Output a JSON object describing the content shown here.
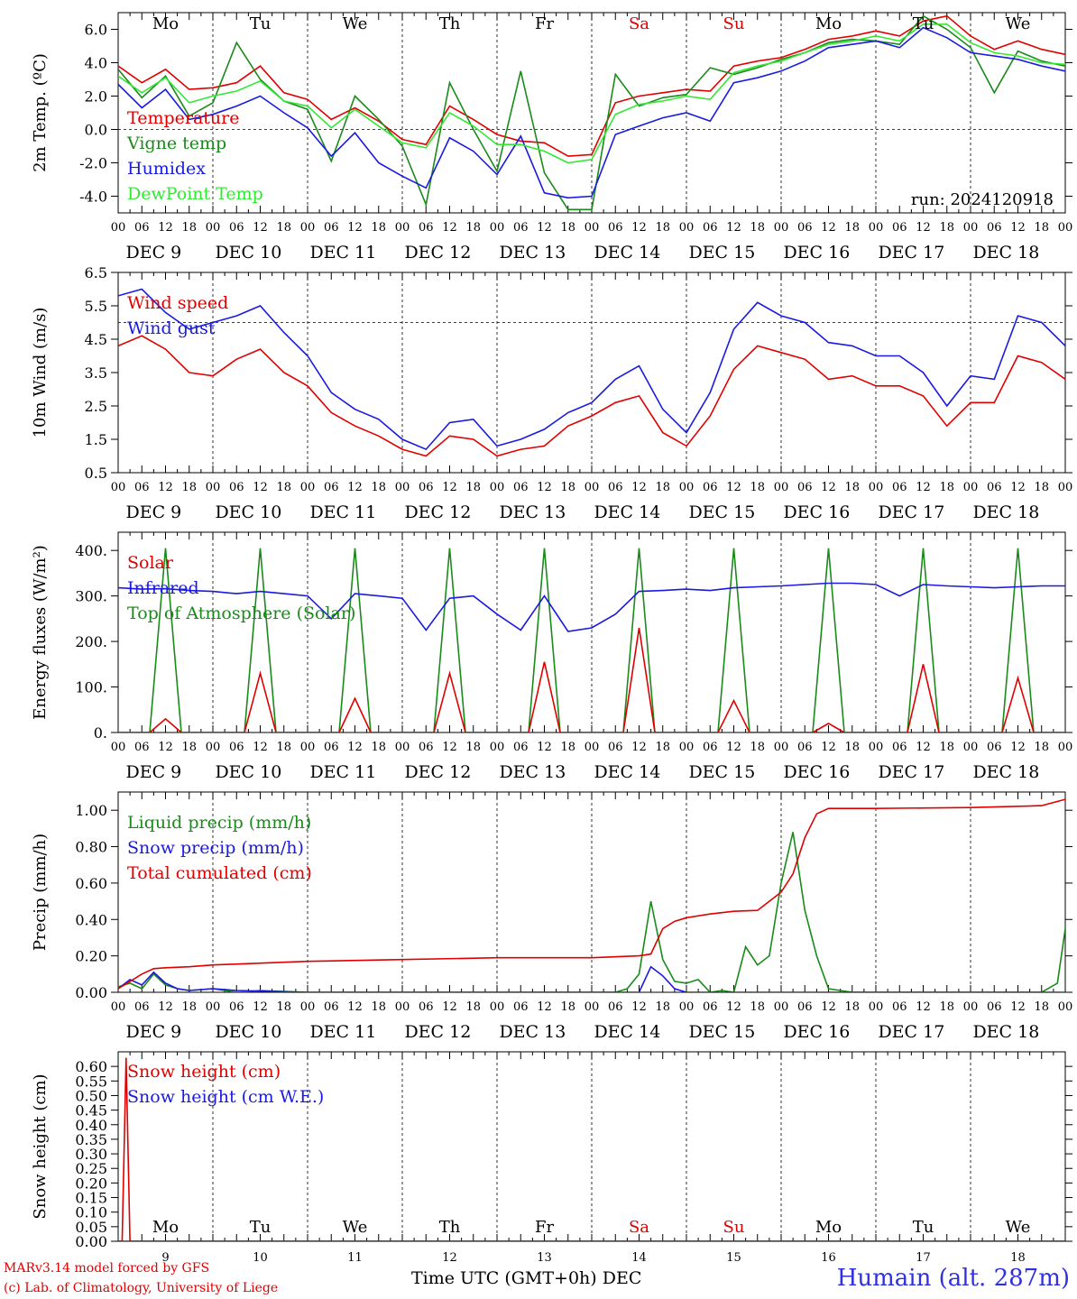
{
  "run_label": "run: 2024120918",
  "days": {
    "names": [
      "Mo",
      "Tu",
      "We",
      "Th",
      "Fr",
      "Sa",
      "Su",
      "Mo",
      "Tu",
      "We"
    ],
    "weekend": [
      false,
      false,
      false,
      false,
      false,
      true,
      true,
      false,
      false,
      false
    ],
    "date_labels": [
      "DEC  9",
      "DEC 10",
      "DEC 11",
      "DEC 12",
      "DEC 13",
      "DEC 14",
      "DEC 15",
      "DEC 16",
      "DEC 17",
      "DEC 18"
    ],
    "day_numbers": [
      "9",
      "10",
      "11",
      "12",
      "13",
      "14",
      "15",
      "16",
      "17",
      "18"
    ],
    "hour_ticks": [
      "00",
      "06",
      "12",
      "18"
    ],
    "final_tick": "00"
  },
  "colors": {
    "red": "#e00000",
    "green": "#1a8a1a",
    "blue": "#1a1ae0",
    "lightgreen": "#33e833",
    "axis": "#000000"
  },
  "chart_data": [
    {
      "type": "line",
      "ylabel": "2m Temp. (ºC)",
      "ylim": [
        -5.0,
        7.0
      ],
      "yticks": [
        "-4.0",
        "-2.0",
        "0.0",
        "2.0",
        "4.0",
        "6.0"
      ],
      "ytick_values": [
        -4,
        -2,
        0,
        2,
        4,
        6
      ],
      "reference_lines": [
        0
      ],
      "x_unit": "hours since DEC 9 00 UTC",
      "x": [
        0,
        6,
        12,
        18,
        24,
        30,
        36,
        42,
        48,
        54,
        60,
        66,
        72,
        78,
        84,
        90,
        96,
        102,
        108,
        114,
        120,
        126,
        132,
        138,
        144,
        150,
        156,
        162,
        168,
        174,
        180,
        186,
        192,
        198,
        204,
        210,
        216,
        222,
        228,
        234,
        240
      ],
      "series": [
        {
          "name": "Temperature",
          "color": "red",
          "values": [
            3.8,
            2.8,
            3.6,
            2.4,
            2.5,
            2.8,
            3.8,
            2.2,
            1.8,
            0.6,
            1.3,
            0.5,
            -0.6,
            -0.9,
            1.4,
            0.6,
            -0.3,
            -0.7,
            -0.8,
            -1.6,
            -1.5,
            1.6,
            2.0,
            2.2,
            2.4,
            2.3,
            3.8,
            4.1,
            4.3,
            4.8,
            5.4,
            5.6,
            5.9,
            5.6,
            6.5,
            6.8,
            5.6,
            4.8,
            5.3,
            4.8,
            4.5
          ]
        },
        {
          "name": "Vigne temp",
          "color": "green",
          "values": [
            3.6,
            1.9,
            3.2,
            0.8,
            1.6,
            5.2,
            3.0,
            1.7,
            1.2,
            -1.9,
            2.0,
            0.6,
            -1.0,
            -4.5,
            2.8,
            0.0,
            -2.5,
            3.5,
            -2.6,
            -4.8,
            -4.8,
            3.3,
            1.4,
            1.9,
            2.1,
            3.7,
            3.3,
            3.7,
            4.2,
            4.6,
            5.2,
            5.4,
            5.3,
            5.1,
            6.8,
            6.0,
            4.9,
            2.2,
            4.7,
            4.1,
            3.8
          ]
        },
        {
          "name": "Humidex",
          "color": "blue",
          "values": [
            2.7,
            1.3,
            2.4,
            0.6,
            0.9,
            1.4,
            2.0,
            1.0,
            0.1,
            -1.6,
            -0.2,
            -2.0,
            -2.8,
            -3.5,
            -0.5,
            -1.3,
            -2.7,
            -0.4,
            -3.8,
            -4.1,
            -4.0,
            -0.3,
            0.2,
            0.7,
            1.0,
            0.5,
            2.8,
            3.1,
            3.5,
            4.1,
            4.9,
            5.1,
            5.3,
            4.9,
            6.1,
            5.5,
            4.6,
            4.4,
            4.2,
            3.8,
            3.5
          ]
        },
        {
          "name": "DewPoint Temp",
          "color": "lightgreen",
          "values": [
            3.2,
            2.2,
            3.1,
            1.6,
            2.0,
            2.3,
            2.9,
            1.7,
            1.4,
            0.1,
            1.2,
            0.2,
            -0.8,
            -1.1,
            1.0,
            0.2,
            -0.9,
            -0.9,
            -1.3,
            -2.0,
            -1.8,
            0.9,
            1.5,
            1.7,
            2.0,
            1.8,
            3.4,
            3.8,
            4.1,
            4.6,
            5.1,
            5.3,
            5.6,
            5.3,
            6.3,
            6.3,
            5.2,
            4.6,
            4.4,
            4.0,
            3.9
          ]
        }
      ]
    },
    {
      "type": "line",
      "ylabel": "10m Wind (m/s)",
      "ylim": [
        0.5,
        6.5
      ],
      "yticks": [
        "0.5",
        "1.5",
        "2.5",
        "3.5",
        "4.5",
        "5.5",
        "6.5"
      ],
      "ytick_values": [
        0.5,
        1.5,
        2.5,
        3.5,
        4.5,
        5.5,
        6.5
      ],
      "reference_lines": [
        5.0
      ],
      "x_unit": "hours since DEC 9 00 UTC",
      "x": [
        0,
        6,
        12,
        18,
        24,
        30,
        36,
        42,
        48,
        54,
        60,
        66,
        72,
        78,
        84,
        90,
        96,
        102,
        108,
        114,
        120,
        126,
        132,
        138,
        144,
        150,
        156,
        162,
        168,
        174,
        180,
        186,
        192,
        198,
        204,
        210,
        216,
        222,
        228,
        234,
        240
      ],
      "series": [
        {
          "name": "Wind speed",
          "color": "red",
          "values": [
            4.3,
            4.6,
            4.2,
            3.5,
            3.4,
            3.9,
            4.2,
            3.5,
            3.1,
            2.3,
            1.9,
            1.6,
            1.2,
            1.0,
            1.6,
            1.5,
            1.0,
            1.2,
            1.3,
            1.9,
            2.2,
            2.6,
            2.8,
            1.7,
            1.3,
            2.2,
            3.6,
            4.3,
            4.1,
            3.9,
            3.3,
            3.4,
            3.1,
            3.1,
            2.8,
            1.9,
            2.6,
            2.6,
            4.0,
            3.8,
            3.3
          ]
        },
        {
          "name": "Wind gust",
          "color": "blue",
          "values": [
            5.8,
            6.0,
            5.3,
            4.8,
            5.0,
            5.2,
            5.5,
            4.7,
            4.0,
            2.9,
            2.4,
            2.1,
            1.5,
            1.2,
            2.0,
            2.1,
            1.3,
            1.5,
            1.8,
            2.3,
            2.6,
            3.3,
            3.7,
            2.4,
            1.7,
            2.9,
            4.8,
            5.6,
            5.2,
            5.0,
            4.4,
            4.3,
            4.0,
            4.0,
            3.5,
            2.5,
            3.4,
            3.3,
            5.2,
            5.0,
            4.3
          ]
        }
      ]
    },
    {
      "type": "line",
      "ylabel": "Energy fluxes (W/m²)",
      "ylim": [
        0,
        440
      ],
      "yticks": [
        "0.",
        "100.",
        "200.",
        "300.",
        "400."
      ],
      "ytick_values": [
        0,
        100,
        200,
        300,
        400
      ],
      "reference_lines": [],
      "solar_peaks": [
        30,
        130,
        75,
        130,
        155,
        230,
        70,
        20,
        150,
        120
      ],
      "toa_peak": 405,
      "infrared": {
        "x": [
          0,
          6,
          12,
          18,
          24,
          30,
          36,
          42,
          48,
          54,
          60,
          66,
          72,
          78,
          84,
          90,
          96,
          102,
          108,
          114,
          120,
          126,
          132,
          138,
          144,
          150,
          156,
          162,
          168,
          174,
          180,
          186,
          192,
          198,
          204,
          210,
          216,
          222,
          228,
          234,
          240
        ],
        "values": [
          318,
          315,
          316,
          312,
          310,
          305,
          310,
          305,
          300,
          250,
          305,
          300,
          295,
          225,
          295,
          300,
          260,
          225,
          300,
          222,
          230,
          260,
          310,
          312,
          315,
          312,
          318,
          320,
          322,
          325,
          328,
          328,
          325,
          300,
          325,
          322,
          320,
          318,
          320,
          322,
          322
        ]
      },
      "series": [
        {
          "name": "Solar",
          "color": "red",
          "values": []
        },
        {
          "name": "Infrared",
          "color": "blue",
          "values": []
        },
        {
          "name": "Top of Atmosphere (Solar)",
          "color": "green",
          "values": []
        }
      ]
    },
    {
      "type": "line",
      "ylabel": "Precip (mm/h)",
      "ylim": [
        0,
        1.1
      ],
      "yticks": [
        "0.00",
        "0.20",
        "0.40",
        "0.60",
        "0.80",
        "1.00"
      ],
      "ytick_values": [
        0,
        0.2,
        0.4,
        0.6,
        0.8,
        1.0
      ],
      "reference_lines": [],
      "x_unit": "hours since DEC 9 00 UTC",
      "series": [
        {
          "name": "Liquid precip (mm/h)",
          "color": "green",
          "x": [
            0,
            3,
            6,
            9,
            12,
            15,
            18,
            24,
            30,
            36,
            48,
            60,
            72,
            84,
            96,
            108,
            120,
            126,
            129,
            132,
            135,
            138,
            141,
            144,
            147,
            150,
            153,
            156,
            159,
            162,
            165,
            168,
            171,
            174,
            177,
            180,
            186,
            192,
            198,
            204,
            210,
            216,
            222,
            228,
            234,
            238,
            240
          ],
          "values": [
            0.03,
            0.05,
            0.02,
            0.1,
            0.04,
            0.02,
            0.01,
            0.02,
            0.0,
            0.01,
            0.0,
            0.0,
            0.0,
            0.0,
            0.0,
            0.0,
            0.0,
            0.0,
            0.02,
            0.1,
            0.5,
            0.18,
            0.06,
            0.05,
            0.07,
            0.0,
            0.01,
            0.0,
            0.25,
            0.15,
            0.2,
            0.6,
            0.88,
            0.45,
            0.2,
            0.02,
            0.0,
            0.0,
            0.0,
            0.0,
            0.0,
            0.0,
            0.0,
            0.0,
            0.0,
            0.05,
            0.35
          ]
        },
        {
          "name": "Snow precip (mm/h)",
          "color": "blue",
          "x": [
            0,
            3,
            6,
            9,
            12,
            15,
            18,
            24,
            30,
            48,
            72,
            96,
            120,
            132,
            135,
            138,
            141,
            144,
            150,
            168,
            192,
            216,
            240
          ],
          "values": [
            0.02,
            0.07,
            0.04,
            0.11,
            0.05,
            0.02,
            0.01,
            0.02,
            0.01,
            0.0,
            0.0,
            0.0,
            0.0,
            0.0,
            0.14,
            0.09,
            0.02,
            0.0,
            0.0,
            0.0,
            0.0,
            0.0,
            0.0
          ]
        },
        {
          "name": "Total cumulated (cm)",
          "color": "red",
          "x": [
            0,
            3,
            6,
            9,
            12,
            18,
            24,
            36,
            48,
            72,
            96,
            120,
            132,
            135,
            138,
            141,
            144,
            150,
            156,
            162,
            165,
            168,
            171,
            174,
            177,
            180,
            192,
            216,
            234,
            240
          ],
          "values": [
            0.02,
            0.06,
            0.1,
            0.13,
            0.135,
            0.14,
            0.15,
            0.16,
            0.17,
            0.18,
            0.19,
            0.19,
            0.2,
            0.21,
            0.35,
            0.39,
            0.41,
            0.43,
            0.445,
            0.45,
            0.5,
            0.55,
            0.65,
            0.85,
            0.98,
            1.01,
            1.01,
            1.015,
            1.025,
            1.06
          ]
        }
      ]
    },
    {
      "type": "line",
      "ylabel": "Snow height (cm)",
      "ylim": [
        0,
        0.65
      ],
      "yticks": [
        "0.00",
        "0.05",
        "0.10",
        "0.15",
        "0.20",
        "0.25",
        "0.30",
        "0.35",
        "0.40",
        "0.45",
        "0.50",
        "0.55",
        "0.60"
      ],
      "ytick_values": [
        0,
        0.05,
        0.1,
        0.15,
        0.2,
        0.25,
        0.3,
        0.35,
        0.4,
        0.45,
        0.5,
        0.55,
        0.6
      ],
      "reference_lines": [],
      "x_unit": "hours since DEC 9 00 UTC",
      "series": [
        {
          "name": "Snow height (cm)",
          "color": "red",
          "x": [
            0,
            1,
            2,
            3,
            4,
            240
          ],
          "values": [
            0,
            0.0,
            0.63,
            0.0,
            0.0,
            0.0
          ]
        },
        {
          "name": "Snow height (cm W.E.)",
          "color": "blue",
          "x": [
            0,
            240
          ],
          "values": [
            0,
            0
          ]
        }
      ]
    }
  ],
  "x_axis_title": "Time UTC (GMT+0h) DEC",
  "credits": [
    "MARv3.14 model forced by GFS",
    "(c) Lab. of Climatology, University of Liege"
  ],
  "station": "Humain (alt. 287m)"
}
